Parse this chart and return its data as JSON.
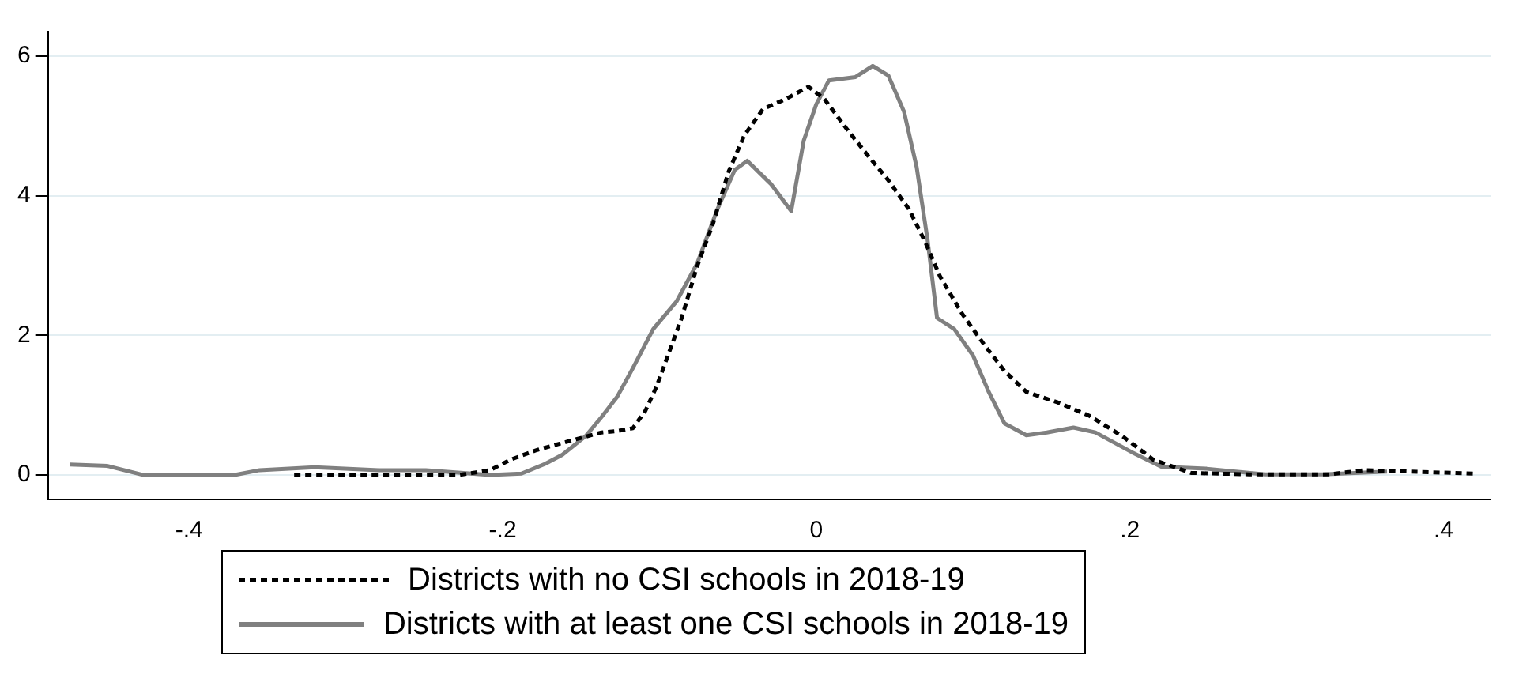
{
  "chart_data": {
    "type": "line",
    "xlim": [
      -0.49,
      0.43
    ],
    "ylim": [
      -0.35,
      6.35
    ],
    "xticks": [
      {
        "value": -0.4,
        "label": "-.4"
      },
      {
        "value": -0.2,
        "label": "-.2"
      },
      0,
      {
        "value": 0.2,
        "label": ".2"
      },
      {
        "value": 0.4,
        "label": ".4"
      }
    ],
    "yticks": [
      0,
      2,
      4,
      6
    ],
    "grid": "y",
    "legend": "bottom",
    "marker": "none",
    "series": [
      {
        "name": "Districts with no CSI schools in 2018-19",
        "color": "#000000",
        "line_style": "dashed",
        "x": [
          -0.333,
          -0.228,
          -0.208,
          -0.195,
          -0.178,
          -0.157,
          -0.137,
          -0.127,
          -0.117,
          -0.109,
          -0.102,
          -0.086,
          -0.076,
          -0.066,
          -0.056,
          -0.046,
          -0.034,
          -0.019,
          -0.005,
          0.005,
          0.019,
          0.032,
          0.046,
          0.059,
          0.069,
          0.079,
          0.093,
          0.107,
          0.12,
          0.134,
          0.154,
          0.174,
          0.195,
          0.215,
          0.239,
          0.276,
          0.327,
          0.35,
          0.377,
          0.421
        ],
        "values": [
          0,
          0,
          0.07,
          0.22,
          0.36,
          0.49,
          0.61,
          0.63,
          0.67,
          0.92,
          1.26,
          2.24,
          2.99,
          3.59,
          4.34,
          4.86,
          5.24,
          5.39,
          5.56,
          5.39,
          4.97,
          4.6,
          4.22,
          3.81,
          3.36,
          2.84,
          2.31,
          1.87,
          1.49,
          1.19,
          1.04,
          0.85,
          0.56,
          0.22,
          0.03,
          0.01,
          0.01,
          0.07,
          0.05,
          0.02
        ]
      },
      {
        "name": "Districts with at least one CSI schools in 2018-19",
        "color": "#808080",
        "line_style": "solid",
        "x": [
          -0.476,
          -0.452,
          -0.429,
          -0.371,
          -0.355,
          -0.32,
          -0.279,
          -0.249,
          -0.208,
          -0.188,
          -0.173,
          -0.162,
          -0.147,
          -0.137,
          -0.127,
          -0.117,
          -0.104,
          -0.089,
          -0.076,
          -0.063,
          -0.052,
          -0.044,
          -0.029,
          -0.016,
          -0.008,
          0,
          0.008,
          0.025,
          0.036,
          0.046,
          0.056,
          0.064,
          0.071,
          0.077,
          0.088,
          0.1,
          0.11,
          0.12,
          0.134,
          0.147,
          0.164,
          0.178,
          0.201,
          0.22,
          0.249,
          0.286,
          0.323,
          0.364
        ],
        "values": [
          0.15,
          0.13,
          0,
          0,
          0.07,
          0.11,
          0.07,
          0.07,
          0,
          0.02,
          0.16,
          0.29,
          0.56,
          0.83,
          1.12,
          1.53,
          2.09,
          2.49,
          3.03,
          3.81,
          4.37,
          4.5,
          4.17,
          3.78,
          4.79,
          5.31,
          5.65,
          5.7,
          5.86,
          5.72,
          5.2,
          4.41,
          3.36,
          2.25,
          2.09,
          1.71,
          1.19,
          0.74,
          0.57,
          0.61,
          0.68,
          0.61,
          0.33,
          0.12,
          0.09,
          0.01,
          0.01,
          0.05
        ]
      }
    ]
  }
}
